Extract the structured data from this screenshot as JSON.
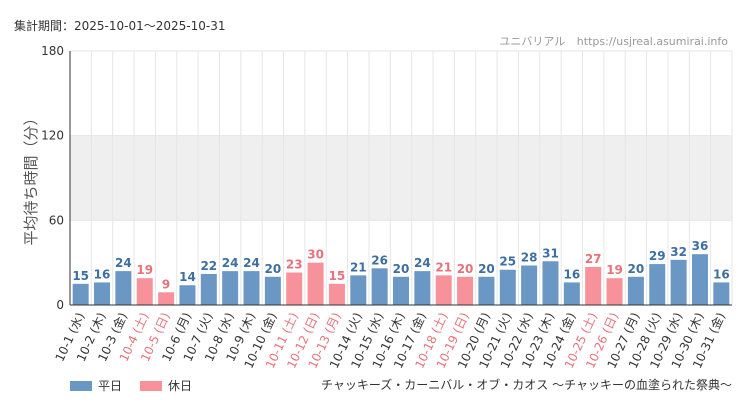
{
  "header": {
    "period_label": "集計期間：2025-10-01～2025-10-31",
    "brand_name": "ユニバリアル",
    "brand_url": "https://usjreal.asumirai.info"
  },
  "footer": {
    "attraction_title": "チャッキーズ・カーニバル・オブ・カオス ～チャッキーの血塗られた祭典～"
  },
  "colors": {
    "weekday": "#6b97c4",
    "holiday": "#f7919a",
    "weekday_label": "#3f6f9f",
    "holiday_label": "#e7727c",
    "band": "#efefef",
    "grid": "#e6e6e6",
    "axis": "#333333"
  },
  "chart_data": {
    "type": "bar",
    "ylabel": "平均待ち時間（分）",
    "ylim": [
      0,
      180
    ],
    "y_ticks": [
      0,
      60,
      120,
      180
    ],
    "highlight_band": [
      60,
      120
    ],
    "grid": true,
    "legend_position": "bottom-left",
    "series": [
      {
        "name": "平日",
        "key": "weekday"
      },
      {
        "name": "休日",
        "key": "holiday"
      }
    ],
    "categories": [
      "10-1 (水)",
      "10-2 (木)",
      "10-3 (金)",
      "10-4 (土)",
      "10-5 (日)",
      "10-6 (月)",
      "10-7 (火)",
      "10-8 (水)",
      "10-9 (木)",
      "10-10 (金)",
      "10-11 (土)",
      "10-12 (日)",
      "10-13 (月)",
      "10-14 (火)",
      "10-15 (水)",
      "10-16 (木)",
      "10-17 (金)",
      "10-18 (土)",
      "10-19 (日)",
      "10-20 (月)",
      "10-21 (火)",
      "10-22 (水)",
      "10-23 (木)",
      "10-24 (金)",
      "10-25 (土)",
      "10-26 (日)",
      "10-27 (月)",
      "10-28 (火)",
      "10-29 (水)",
      "10-30 (木)",
      "10-31 (金)"
    ],
    "values": [
      15,
      16,
      24,
      19,
      9,
      14,
      22,
      24,
      24,
      20,
      23,
      30,
      15,
      21,
      26,
      20,
      24,
      21,
      20,
      20,
      25,
      28,
      31,
      16,
      27,
      19,
      20,
      29,
      32,
      36,
      16
    ],
    "day_type": [
      "weekday",
      "weekday",
      "weekday",
      "holiday",
      "holiday",
      "weekday",
      "weekday",
      "weekday",
      "weekday",
      "weekday",
      "holiday",
      "holiday",
      "holiday",
      "weekday",
      "weekday",
      "weekday",
      "weekday",
      "holiday",
      "holiday",
      "weekday",
      "weekday",
      "weekday",
      "weekday",
      "weekday",
      "holiday",
      "holiday",
      "weekday",
      "weekday",
      "weekday",
      "weekday",
      "weekday"
    ]
  }
}
